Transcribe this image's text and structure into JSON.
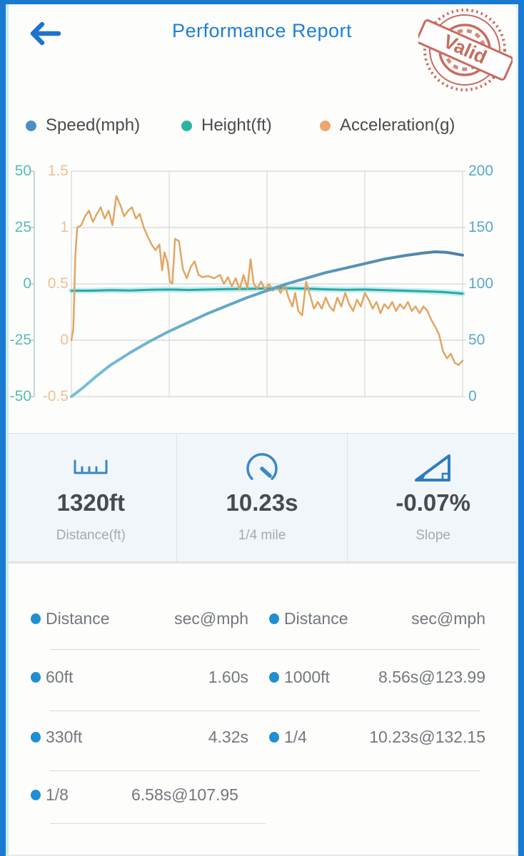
{
  "header": {
    "title": "Performance Report",
    "back_label": "back",
    "stamp_text": "Valid",
    "stamp_color": "#c4574a",
    "title_color": "#1d80d8"
  },
  "legend": {
    "items": [
      {
        "label": "Speed(mph)",
        "color": "#4a90c8"
      },
      {
        "label": "Height(ft)",
        "color": "#2bb3a0"
      },
      {
        "label": "Acceleration(g)",
        "color": "#eda76c"
      }
    ]
  },
  "chart_data": {
    "type": "line",
    "x_range": [
      0,
      1
    ],
    "grid": {
      "cols": 4,
      "rows": 4,
      "color": "#d6d6d6",
      "on": true
    },
    "axes": [
      {
        "id": "height",
        "side": "left-outer",
        "ticks": [
          "50",
          "25",
          "0",
          "-25",
          "-50"
        ],
        "range": [
          -50,
          50
        ],
        "label_color": "#55bdb2",
        "axis_line_color": "#abc7c3"
      },
      {
        "id": "accel",
        "side": "left-inner",
        "ticks": [
          "1.5",
          "1",
          "0.5",
          "0",
          "-0.5"
        ],
        "range": [
          -0.5,
          1.5
        ],
        "label_color": "#eec094"
      },
      {
        "id": "speed",
        "side": "right",
        "ticks": [
          "200",
          "150",
          "100",
          "50",
          "0"
        ],
        "range": [
          0,
          200
        ],
        "label_color": "#58a8ce"
      }
    ],
    "series": [
      {
        "name": "Height(ft)",
        "axis": "height",
        "color": "#2ba8a2",
        "halo": "#b9ecf2",
        "halo_width": 8,
        "width": 3,
        "x": [
          0,
          0.05,
          0.1,
          0.15,
          0.2,
          0.25,
          0.3,
          0.35,
          0.4,
          0.45,
          0.5,
          0.55,
          0.6,
          0.65,
          0.7,
          0.75,
          0.8,
          0.85,
          0.9,
          0.95,
          1.0
        ],
        "values": [
          -3.0,
          -3.0,
          -2.8,
          -2.9,
          -2.6,
          -2.5,
          -2.7,
          -2.5,
          -2.3,
          -2.2,
          -2.0,
          -1.9,
          -2.1,
          -2.4,
          -2.6,
          -2.5,
          -2.8,
          -3.0,
          -3.3,
          -3.6,
          -4.3
        ]
      },
      {
        "name": "Acceleration(g)",
        "axis": "accel",
        "color": "#e3a561",
        "width": 2.5,
        "x": [
          0,
          0.005,
          0.01,
          0.015,
          0.025,
          0.035,
          0.045,
          0.055,
          0.065,
          0.075,
          0.085,
          0.095,
          0.105,
          0.115,
          0.125,
          0.135,
          0.145,
          0.155,
          0.165,
          0.175,
          0.185,
          0.195,
          0.205,
          0.215,
          0.225,
          0.232,
          0.238,
          0.245,
          0.252,
          0.258,
          0.265,
          0.275,
          0.285,
          0.295,
          0.305,
          0.315,
          0.325,
          0.335,
          0.35,
          0.365,
          0.38,
          0.39,
          0.4,
          0.41,
          0.42,
          0.43,
          0.44,
          0.45,
          0.458,
          0.466,
          0.475,
          0.485,
          0.495,
          0.505,
          0.515,
          0.525,
          0.535,
          0.545,
          0.555,
          0.565,
          0.572,
          0.58,
          0.59,
          0.6,
          0.61,
          0.62,
          0.63,
          0.64,
          0.65,
          0.66,
          0.67,
          0.68,
          0.69,
          0.7,
          0.71,
          0.72,
          0.73,
          0.74,
          0.75,
          0.76,
          0.77,
          0.78,
          0.79,
          0.8,
          0.81,
          0.82,
          0.83,
          0.84,
          0.85,
          0.86,
          0.87,
          0.88,
          0.89,
          0.9,
          0.91,
          0.92,
          0.93,
          0.94,
          0.95,
          0.96,
          0.97,
          0.98,
          0.99,
          1.0
        ],
        "values": [
          0,
          0.1,
          0.75,
          1.0,
          1.02,
          1.1,
          1.15,
          1.05,
          1.12,
          1.18,
          1.08,
          1.15,
          1.02,
          1.28,
          1.2,
          1.1,
          1.15,
          1.18,
          1.08,
          1.12,
          1.0,
          0.92,
          0.85,
          0.8,
          0.85,
          0.62,
          0.78,
          0.7,
          0.52,
          0.5,
          0.9,
          0.88,
          0.63,
          0.55,
          0.65,
          0.7,
          0.58,
          0.56,
          0.57,
          0.55,
          0.58,
          0.5,
          0.56,
          0.48,
          0.55,
          0.45,
          0.58,
          0.46,
          0.72,
          0.5,
          0.46,
          0.52,
          0.45,
          0.5,
          0.44,
          0.48,
          0.42,
          0.5,
          0.38,
          0.3,
          0.42,
          0.26,
          0.22,
          0.52,
          0.4,
          0.28,
          0.34,
          0.28,
          0.38,
          0.3,
          0.26,
          0.38,
          0.3,
          0.42,
          0.32,
          0.26,
          0.36,
          0.3,
          0.42,
          0.36,
          0.28,
          0.34,
          0.24,
          0.32,
          0.28,
          0.34,
          0.26,
          0.32,
          0.28,
          0.34,
          0.26,
          0.3,
          0.24,
          0.3,
          0.26,
          0.18,
          0.12,
          0.05,
          -0.1,
          -0.16,
          -0.12,
          -0.2,
          -0.22,
          -0.18
        ]
      },
      {
        "name": "Speed(mph)",
        "axis": "speed",
        "color": "#77c0da",
        "color_end": "#4a80aa",
        "width": 4,
        "x": [
          0,
          0.03,
          0.06,
          0.1,
          0.15,
          0.2,
          0.25,
          0.3,
          0.35,
          0.4,
          0.45,
          0.5,
          0.55,
          0.6,
          0.65,
          0.7,
          0.75,
          0.8,
          0.85,
          0.9,
          0.93,
          0.96,
          1.0
        ],
        "values": [
          0,
          8,
          17,
          28,
          39,
          49,
          58,
          66,
          74,
          81,
          88,
          94,
          100,
          105,
          110,
          114,
          118,
          122,
          125,
          127.5,
          128.5,
          128,
          125.5
        ]
      }
    ],
    "title": "",
    "xlabel": "",
    "ylabel": ""
  },
  "stats": [
    {
      "icon": "ruler-icon",
      "value": "1320ft",
      "label": "Distance(ft)"
    },
    {
      "icon": "gauge-icon",
      "value": "10.23s",
      "label": "1/4 mile"
    },
    {
      "icon": "slope-icon",
      "value": "-0.07%",
      "label": "Slope"
    }
  ],
  "table": {
    "headers": [
      "Distance",
      "sec@mph",
      "Distance",
      "sec@mph"
    ],
    "rows": [
      {
        "left": {
          "name": "60ft",
          "value": "1.60s"
        },
        "right": {
          "name": "1000ft",
          "value": "8.56s@123.99"
        }
      },
      {
        "left": {
          "name": "330ft",
          "value": "4.32s"
        },
        "right": {
          "name": "1/4",
          "value": "10.23s@132.15"
        }
      },
      {
        "left": {
          "name": "1/8",
          "value": "6.58s@107.95"
        },
        "right": null
      }
    ],
    "dot_color": "#1f8ed2"
  }
}
